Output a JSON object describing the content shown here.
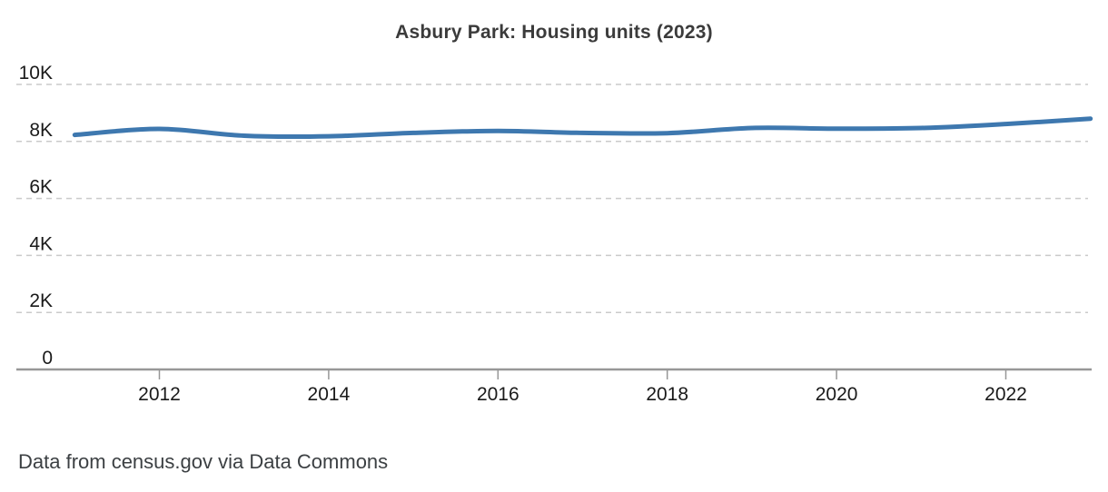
{
  "page": {
    "background": "#ffffff"
  },
  "chart_data": {
    "type": "line",
    "title": "Asbury Park: Housing units (2023)",
    "x": [
      2011,
      2012,
      2013,
      2014,
      2015,
      2016,
      2017,
      2018,
      2019,
      2020,
      2021,
      2022,
      2023
    ],
    "series": [
      {
        "name": "Housing units",
        "values": [
          8230,
          8440,
          8200,
          8180,
          8300,
          8370,
          8300,
          8290,
          8470,
          8450,
          8470,
          8610,
          8800
        ]
      }
    ],
    "xlabel": "",
    "ylabel": "",
    "xlim": [
      2011,
      2023
    ],
    "ylim": [
      0,
      10000
    ],
    "x_tick_years": [
      2012,
      2014,
      2016,
      2018,
      2020,
      2022
    ],
    "y_ticks": [
      {
        "value": 0,
        "label": "0"
      },
      {
        "value": 2000,
        "label": "2K"
      },
      {
        "value": 4000,
        "label": "4K"
      },
      {
        "value": 6000,
        "label": "6K"
      },
      {
        "value": 8000,
        "label": "8K"
      },
      {
        "value": 10000,
        "label": "10K"
      }
    ],
    "grid": "horizontal-dashed",
    "legend": "none",
    "line_color": "#3e78af",
    "axis_color": "#979797",
    "grid_color": "#cacaca",
    "label_color": "#1a1a1a",
    "title_color": "#3b3b3b"
  },
  "footer": {
    "text": "Data from census.gov via Data Commons"
  }
}
